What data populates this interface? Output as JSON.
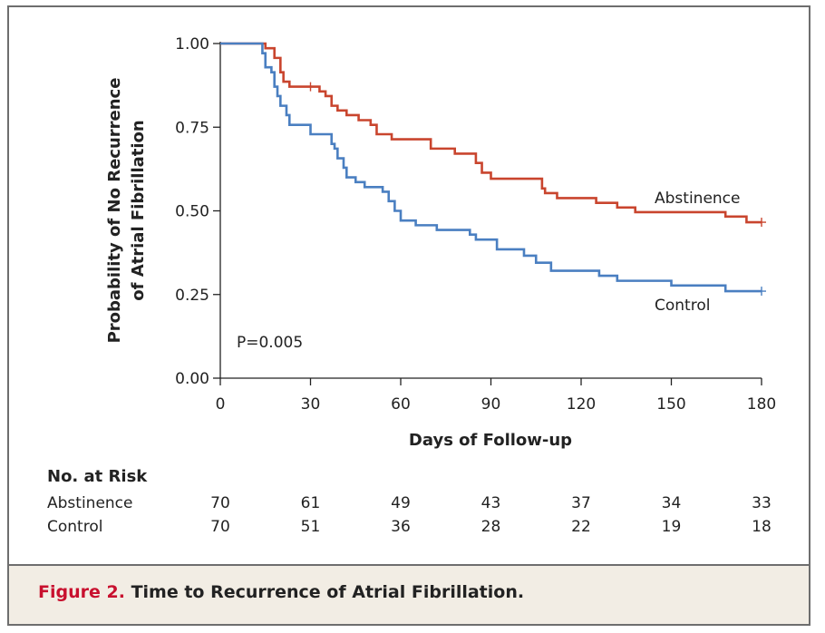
{
  "figure": {
    "label": "Figure 2.",
    "title": "Time to Recurrence of Atrial Fibrillation."
  },
  "colors": {
    "abstinence": "#c9452e",
    "control": "#4a7fc1",
    "caption_band": "#f2ede4",
    "label_red": "#c8102e"
  },
  "chart_data": {
    "type": "line",
    "subtype": "kaplan-meier-step",
    "xlabel": "Days of Follow-up",
    "ylabel_line1": "Probability of No Recurrence",
    "ylabel_line2": "of Atrial Fibrillation",
    "xlim": [
      0,
      180
    ],
    "ylim": [
      0,
      1
    ],
    "xticks": [
      0,
      30,
      60,
      90,
      120,
      150,
      180
    ],
    "xtick_labels": [
      "0",
      "30",
      "60",
      "90",
      "120",
      "150",
      "180"
    ],
    "yticks": [
      0,
      0.25,
      0.5,
      0.75,
      1.0
    ],
    "ytick_labels": [
      "0.00",
      "0.25",
      "0.50",
      "0.75",
      "1.00"
    ],
    "annotation": "P=0.005",
    "series": [
      {
        "name": "Abstinence",
        "color": "#c9452e",
        "censor_marks": [
          [
            30,
            0.871
          ],
          [
            180,
            0.466
          ]
        ],
        "points": [
          [
            0,
            1.0
          ],
          [
            15,
            0.986
          ],
          [
            18,
            0.957
          ],
          [
            20,
            0.914
          ],
          [
            21,
            0.886
          ],
          [
            23,
            0.871
          ],
          [
            33,
            0.857
          ],
          [
            35,
            0.843
          ],
          [
            37,
            0.814
          ],
          [
            39,
            0.8
          ],
          [
            42,
            0.786
          ],
          [
            46,
            0.771
          ],
          [
            50,
            0.757
          ],
          [
            52,
            0.729
          ],
          [
            57,
            0.714
          ],
          [
            70,
            0.686
          ],
          [
            78,
            0.671
          ],
          [
            85,
            0.643
          ],
          [
            87,
            0.614
          ],
          [
            90,
            0.596
          ],
          [
            107,
            0.567
          ],
          [
            108,
            0.553
          ],
          [
            112,
            0.538
          ],
          [
            125,
            0.524
          ],
          [
            132,
            0.51
          ],
          [
            138,
            0.496
          ],
          [
            168,
            0.483
          ],
          [
            175,
            0.466
          ],
          [
            180,
            0.466
          ]
        ]
      },
      {
        "name": "Control",
        "color": "#4a7fc1",
        "censor_marks": [
          [
            180,
            0.26
          ]
        ],
        "points": [
          [
            0,
            1.0
          ],
          [
            14,
            0.971
          ],
          [
            15,
            0.929
          ],
          [
            17,
            0.914
          ],
          [
            18,
            0.871
          ],
          [
            19,
            0.843
          ],
          [
            20,
            0.814
          ],
          [
            22,
            0.786
          ],
          [
            23,
            0.757
          ],
          [
            30,
            0.729
          ],
          [
            37,
            0.7
          ],
          [
            38,
            0.686
          ],
          [
            39,
            0.657
          ],
          [
            41,
            0.629
          ],
          [
            42,
            0.6
          ],
          [
            45,
            0.586
          ],
          [
            48,
            0.571
          ],
          [
            54,
            0.557
          ],
          [
            56,
            0.529
          ],
          [
            58,
            0.5
          ],
          [
            60,
            0.471
          ],
          [
            65,
            0.457
          ],
          [
            72,
            0.443
          ],
          [
            83,
            0.429
          ],
          [
            85,
            0.414
          ],
          [
            92,
            0.385
          ],
          [
            101,
            0.366
          ],
          [
            105,
            0.345
          ],
          [
            110,
            0.321
          ],
          [
            126,
            0.306
          ],
          [
            132,
            0.291
          ],
          [
            150,
            0.277
          ],
          [
            168,
            0.26
          ],
          [
            180,
            0.26
          ]
        ]
      }
    ],
    "series_labels": [
      "Abstinence",
      "Control"
    ]
  },
  "risk_table": {
    "title": "No. at Risk",
    "rows": [
      {
        "name": "Abstinence",
        "values": [
          "70",
          "61",
          "49",
          "43",
          "37",
          "34",
          "33"
        ]
      },
      {
        "name": "Control",
        "values": [
          "70",
          "51",
          "36",
          "28",
          "22",
          "19",
          "18"
        ]
      }
    ]
  }
}
